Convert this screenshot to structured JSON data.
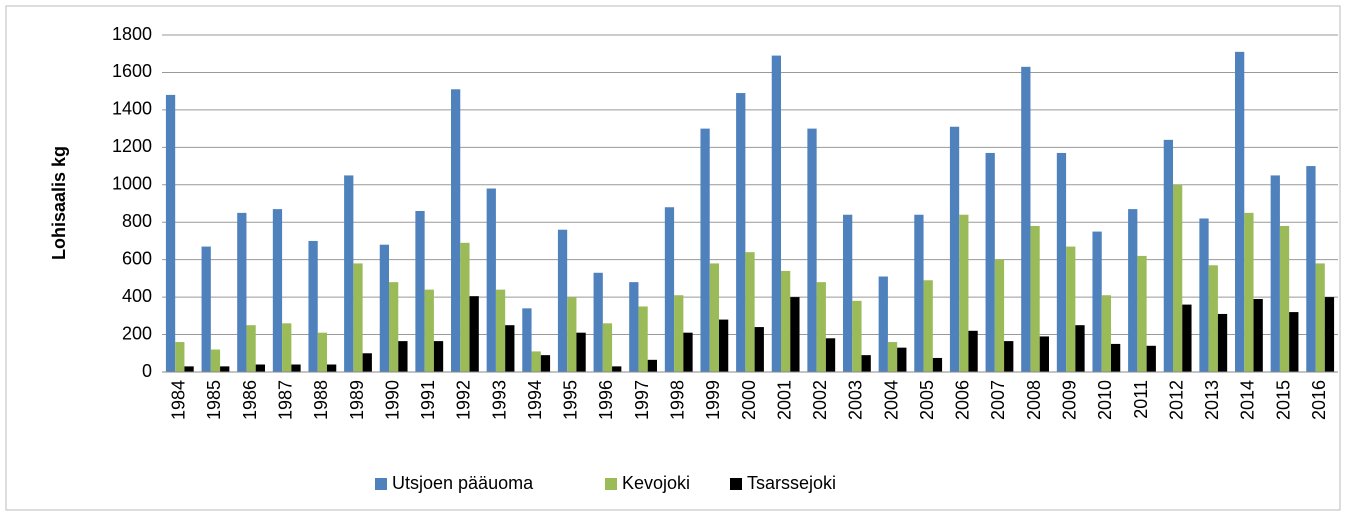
{
  "chart_data": {
    "type": "bar",
    "ylabel": "Lohisaalis kg",
    "categories": [
      "1984",
      "1985",
      "1986",
      "1987",
      "1988",
      "1989",
      "1990",
      "1991",
      "1992",
      "1993",
      "1994",
      "1995",
      "1996",
      "1997",
      "1998",
      "1999",
      "2000",
      "2001",
      "2002",
      "2003",
      "2004",
      "2005",
      "2006",
      "2007",
      "2008",
      "2009",
      "2010",
      "2011",
      "2012",
      "2013",
      "2014",
      "2015",
      "2016"
    ],
    "series": [
      {
        "name": "Utsjoen pääuoma",
        "color": "#4f81bd",
        "values": [
          1480,
          670,
          850,
          870,
          700,
          1050,
          680,
          860,
          1510,
          980,
          340,
          760,
          530,
          480,
          880,
          1300,
          1490,
          1690,
          1300,
          840,
          510,
          840,
          1310,
          1170,
          1630,
          1170,
          750,
          870,
          1240,
          820,
          1710,
          1050,
          1100
        ]
      },
      {
        "name": "Kevojoki",
        "color": "#9bbb59",
        "values": [
          160,
          120,
          250,
          260,
          210,
          580,
          480,
          440,
          690,
          440,
          110,
          400,
          260,
          350,
          410,
          580,
          640,
          540,
          480,
          380,
          160,
          490,
          840,
          600,
          780,
          670,
          410,
          620,
          1000,
          570,
          850,
          780,
          580
        ]
      },
      {
        "name": "Tsarssejoki",
        "color": "#000000",
        "values": [
          30,
          30,
          40,
          40,
          40,
          100,
          165,
          165,
          405,
          250,
          90,
          210,
          30,
          65,
          210,
          280,
          240,
          400,
          180,
          90,
          130,
          75,
          220,
          165,
          190,
          250,
          150,
          140,
          360,
          310,
          390,
          320,
          400
        ]
      }
    ],
    "ylim": [
      0,
      1800
    ],
    "yticks": [
      0,
      200,
      400,
      600,
      800,
      1000,
      1200,
      1400,
      1600,
      1800
    ],
    "grid": true,
    "legend": "bottom"
  }
}
